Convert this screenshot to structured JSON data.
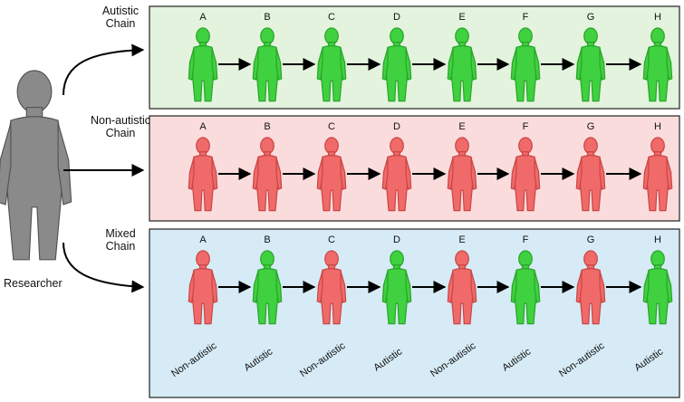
{
  "researcher": {
    "label": "Researcher"
  },
  "chains": [
    {
      "label_lines": [
        "Autistic",
        "Chain"
      ],
      "panel_fill": "#e3f3dd",
      "letters": [
        "A",
        "B",
        "C",
        "D",
        "E",
        "F",
        "G",
        "H"
      ],
      "person_types": [
        "autistic",
        "autistic",
        "autistic",
        "autistic",
        "autistic",
        "autistic",
        "autistic",
        "autistic"
      ]
    },
    {
      "label_lines": [
        "Non-autistic",
        "Chain"
      ],
      "panel_fill": "#fbdcdc",
      "letters": [
        "A",
        "B",
        "C",
        "D",
        "E",
        "F",
        "G",
        "H"
      ],
      "person_types": [
        "non-autistic",
        "non-autistic",
        "non-autistic",
        "non-autistic",
        "non-autistic",
        "non-autistic",
        "non-autistic",
        "non-autistic"
      ]
    },
    {
      "label_lines": [
        "Mixed",
        "Chain"
      ],
      "panel_fill": "#d6ebf5",
      "letters": [
        "A",
        "B",
        "C",
        "D",
        "E",
        "F",
        "G",
        "H"
      ],
      "person_types": [
        "non-autistic",
        "autistic",
        "non-autistic",
        "autistic",
        "non-autistic",
        "autistic",
        "non-autistic",
        "autistic"
      ],
      "type_labels": [
        "Non-autistic",
        "Autistic",
        "Non-autistic",
        "Autistic",
        "Non-autistic",
        "Autistic",
        "Non-autistic",
        "Autistic"
      ]
    }
  ],
  "colors": {
    "autistic": "#3fd13f",
    "non-autistic": "#f06a6a",
    "researcher": "#8a8a8a",
    "panel_border": "#222222",
    "arrow": "#000000"
  },
  "icons": {
    "person": "person-icon",
    "researcher": "researcher-icon",
    "arrow": "arrow-icon"
  }
}
